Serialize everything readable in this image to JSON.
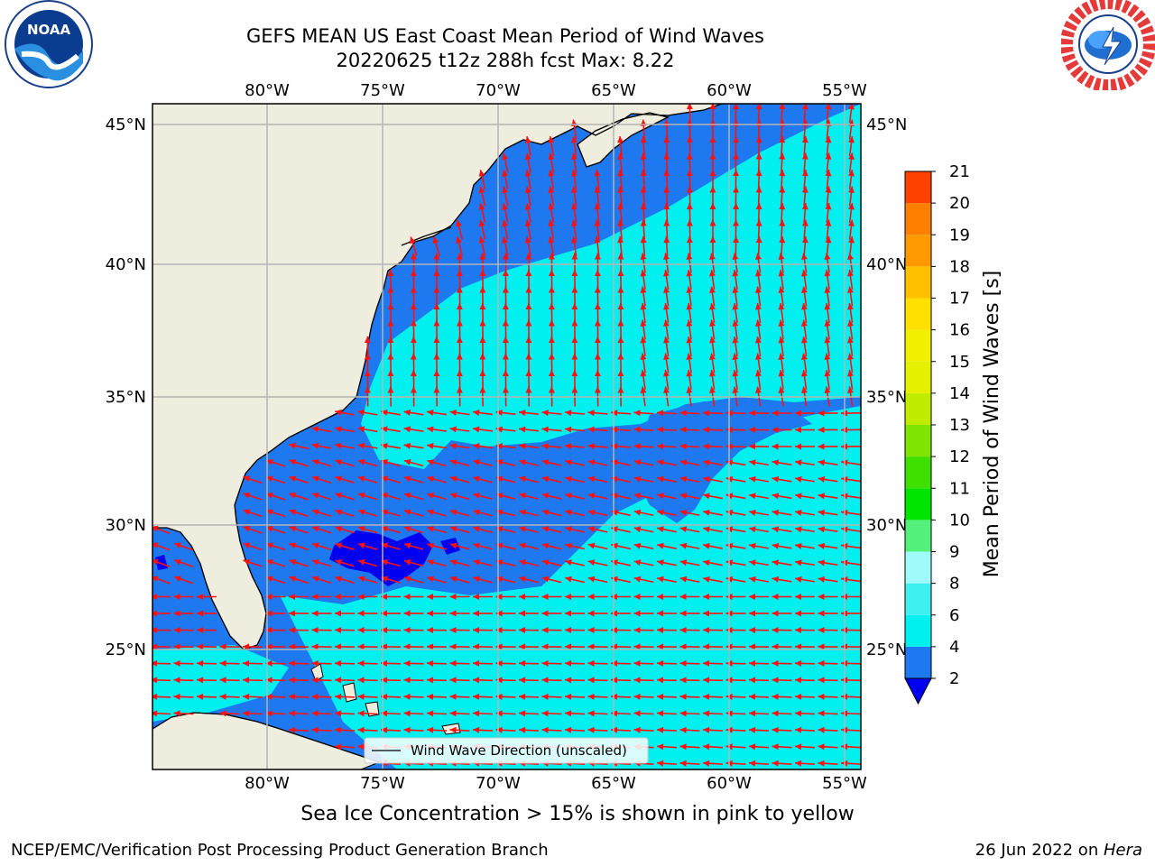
{
  "header": {
    "title_line1": "GEFS MEAN US East Coast Mean Period of Wind Waves",
    "title_line2": "20220625 t12z 288h fcst   Max: 8.22"
  },
  "logos": {
    "left": {
      "icon": "noaa-logo-icon",
      "text": "NOAA",
      "ring_text": "NATIONAL OCEANIC AND ATMOSPHERIC ADMINISTRATION · U.S. DEPARTMENT OF COMMERCE"
    },
    "right": {
      "icon": "nws-logo-icon",
      "ring_text": "NATIONAL WEATHER SERVICE"
    }
  },
  "map": {
    "lon_labels": [
      "80°W",
      "75°W",
      "70°W",
      "65°W",
      "60°W",
      "55°W"
    ],
    "lat_labels": [
      "45°N",
      "40°N",
      "35°N",
      "30°N",
      "25°N"
    ],
    "legend_label": "Wind Wave Direction (unscaled)",
    "colors": {
      "land": "#efedde",
      "ocean_low": "#1e78f0",
      "ocean_mid": "#00f0f0",
      "ocean_light": "#3ff0f0",
      "ocean_min": "#0000f0",
      "arrow": "#ff1010",
      "grid": "#b4b4b4",
      "coast": "#000000"
    }
  },
  "colorbar": {
    "label": "Mean Period of Wind Waves [s]",
    "ticks": [
      "2",
      "4",
      "6",
      "8",
      "9",
      "10",
      "11",
      "12",
      "13",
      "14",
      "15",
      "16",
      "17",
      "18",
      "19",
      "20",
      "21"
    ],
    "colors": [
      "#1e78f0",
      "#00f0f0",
      "#3ff0f0",
      "#9ffafa",
      "#53f07c",
      "#00e500",
      "#3fdf00",
      "#7fe500",
      "#bfec00",
      "#e5f000",
      "#f0f000",
      "#ffe000",
      "#ffc000",
      "#ff9900",
      "#ff7f00",
      "#ff4000",
      "#ff0000"
    ],
    "extend_color": "#0000f0"
  },
  "captions": {
    "ice": "Sea Ice Concentration > 15% is shown in pink to yellow"
  },
  "footer": {
    "left": "NCEP/EMC/Verification Post Processing Product Generation Branch",
    "right_prefix": "26 Jun 2022 on ",
    "right_machine": "Hera"
  }
}
